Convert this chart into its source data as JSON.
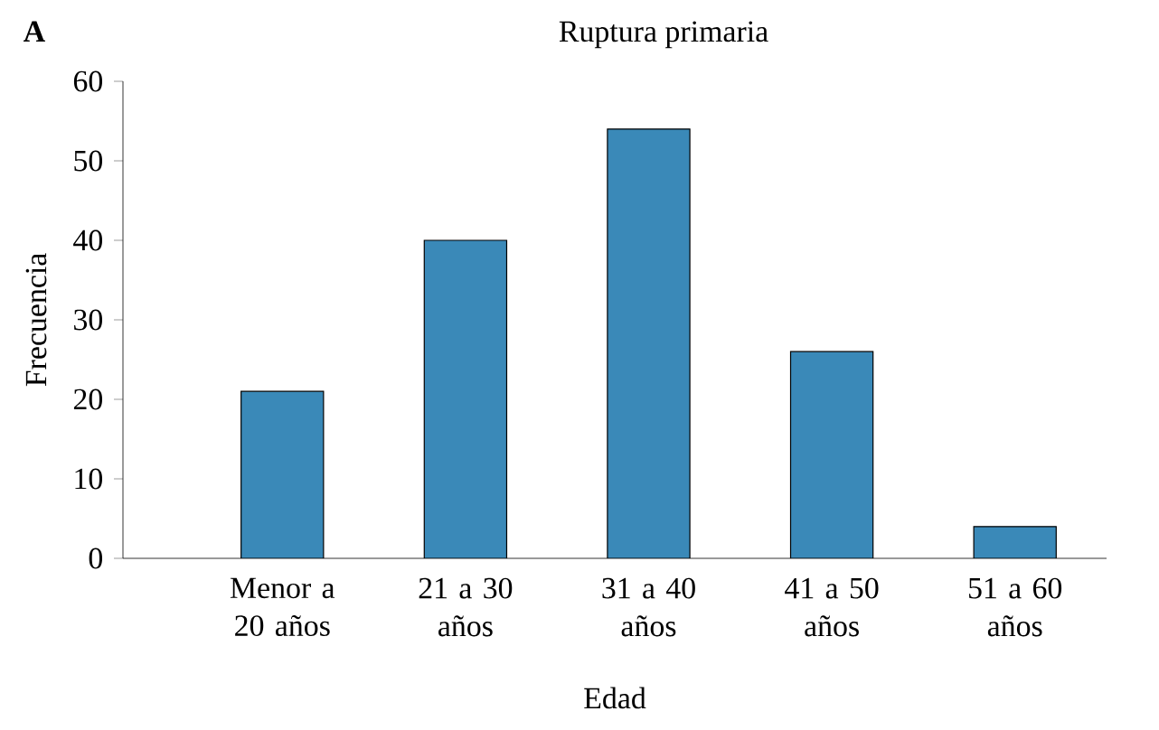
{
  "chart_data": {
    "type": "bar",
    "title": "Ruptura primaria",
    "xlabel": "Edad",
    "ylabel": "Frecuencia",
    "annotations": [
      "A"
    ],
    "categories": [
      "Menor a 20 años",
      "21 a 30 años",
      "31 a 40 años",
      "41 a 50 años",
      "51 a 60 años"
    ],
    "values": [
      21,
      40,
      54,
      26,
      4
    ],
    "color": "#3a89b8",
    "ylim": [
      0,
      60
    ],
    "yticks": [
      0,
      10,
      20,
      30,
      40,
      50,
      60
    ]
  }
}
